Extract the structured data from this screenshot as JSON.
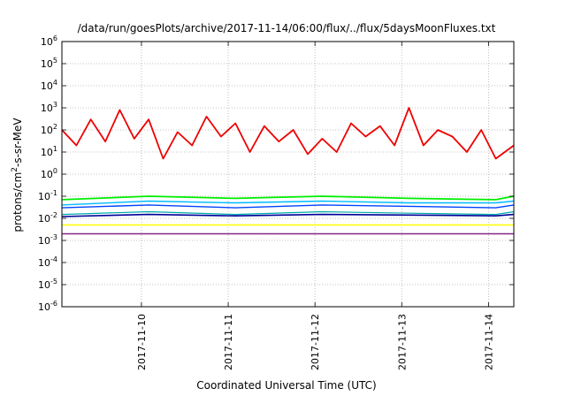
{
  "chart_data": {
    "type": "line",
    "title": "/data/run/goesPlots/archive/2017-11-14/06:00/flux/../flux/5daysMoonFluxes.txt",
    "xlabel": "Coordinated Universal Time (UTC)",
    "ylabel": "protons/cm²-s-sr-MeV",
    "y_scale": "log",
    "ylim": [
      1e-06,
      1000000.0
    ],
    "xlim": [
      "2017-11-09T02:00",
      "2017-11-14T07:00"
    ],
    "grid": true,
    "x_ticks": [
      "2017-11-10",
      "2017-11-11",
      "2017-11-12",
      "2017-11-13",
      "2017-11-14"
    ],
    "y_ticks": [
      {
        "base": "10",
        "exp": "-6"
      },
      {
        "base": "10",
        "exp": "-5"
      },
      {
        "base": "10",
        "exp": "-4"
      },
      {
        "base": "10",
        "exp": "-3"
      },
      {
        "base": "10",
        "exp": "-2"
      },
      {
        "base": "10",
        "exp": "-1"
      },
      {
        "base": "10",
        "exp": "0"
      },
      {
        "base": "10",
        "exp": "1"
      },
      {
        "base": "10",
        "exp": "2"
      },
      {
        "base": "10",
        "exp": "3"
      },
      {
        "base": "10",
        "exp": "4"
      },
      {
        "base": "10",
        "exp": "5"
      },
      {
        "base": "10",
        "exp": "6"
      }
    ],
    "series": [
      {
        "color": "#ee0000",
        "width": 1.8,
        "x": [
          "2017-11-09T02:00",
          "2017-11-09T06:00",
          "2017-11-09T10:00",
          "2017-11-09T14:00",
          "2017-11-09T18:00",
          "2017-11-09T22:00",
          "2017-11-10T02:00",
          "2017-11-10T06:00",
          "2017-11-10T10:00",
          "2017-11-10T14:00",
          "2017-11-10T18:00",
          "2017-11-10T22:00",
          "2017-11-11T02:00",
          "2017-11-11T06:00",
          "2017-11-11T10:00",
          "2017-11-11T14:00",
          "2017-11-11T18:00",
          "2017-11-11T22:00",
          "2017-11-12T02:00",
          "2017-11-12T06:00",
          "2017-11-12T10:00",
          "2017-11-12T14:00",
          "2017-11-12T18:00",
          "2017-11-12T22:00",
          "2017-11-13T02:00",
          "2017-11-13T06:00",
          "2017-11-13T10:00",
          "2017-11-13T14:00",
          "2017-11-13T18:00",
          "2017-11-13T22:00",
          "2017-11-14T02:00",
          "2017-11-14T07:00"
        ],
        "values": [
          100,
          20,
          300,
          30,
          800,
          40,
          300,
          5,
          80,
          20,
          400,
          50,
          200,
          10,
          150,
          30,
          100,
          8,
          40,
          10,
          200,
          50,
          150,
          20,
          1000,
          20,
          100,
          50,
          10,
          100,
          5,
          20
        ]
      },
      {
        "color": "#00ee00",
        "width": 1.8,
        "x": [
          "2017-11-09T02:00",
          "2017-11-10T02:00",
          "2017-11-11T02:00",
          "2017-11-12T02:00",
          "2017-11-13T02:00",
          "2017-11-14T02:00",
          "2017-11-14T07:00"
        ],
        "values": [
          0.07,
          0.1,
          0.08,
          0.1,
          0.08,
          0.07,
          0.1
        ]
      },
      {
        "color": "#00bbff",
        "width": 1.4,
        "x": [
          "2017-11-09T02:00",
          "2017-11-10T02:00",
          "2017-11-11T02:00",
          "2017-11-12T02:00",
          "2017-11-13T02:00",
          "2017-11-14T02:00",
          "2017-11-14T07:00"
        ],
        "values": [
          0.04,
          0.06,
          0.05,
          0.06,
          0.05,
          0.05,
          0.06
        ]
      },
      {
        "color": "#0044ff",
        "width": 1.4,
        "x": [
          "2017-11-09T02:00",
          "2017-11-10T02:00",
          "2017-11-11T02:00",
          "2017-11-12T02:00",
          "2017-11-13T02:00",
          "2017-11-14T02:00",
          "2017-11-14T07:00"
        ],
        "values": [
          0.03,
          0.04,
          0.03,
          0.04,
          0.035,
          0.03,
          0.04
        ]
      },
      {
        "color": "#00aaaa",
        "width": 1.2,
        "x": [
          "2017-11-09T02:00",
          "2017-11-10T02:00",
          "2017-11-11T02:00",
          "2017-11-12T02:00",
          "2017-11-13T02:00",
          "2017-11-14T02:00",
          "2017-11-14T07:00"
        ],
        "values": [
          0.015,
          0.02,
          0.015,
          0.02,
          0.017,
          0.015,
          0.02
        ]
      },
      {
        "color": "#000099",
        "width": 1.6,
        "x": [
          "2017-11-09T02:00",
          "2017-11-10T02:00",
          "2017-11-11T02:00",
          "2017-11-12T02:00",
          "2017-11-13T02:00",
          "2017-11-14T02:00",
          "2017-11-14T07:00"
        ],
        "values": [
          0.012,
          0.015,
          0.013,
          0.015,
          0.014,
          0.013,
          0.015
        ]
      },
      {
        "color": "#ffff00",
        "width": 1.6,
        "x": [
          "2017-11-09T02:00",
          "2017-11-10T02:00",
          "2017-11-11T02:00",
          "2017-11-12T02:00",
          "2017-11-13T02:00",
          "2017-11-14T02:00",
          "2017-11-14T07:00"
        ],
        "values": [
          0.005,
          0.005,
          0.005,
          0.005,
          0.005,
          0.005,
          0.005
        ]
      },
      {
        "color": "#882288",
        "width": 1.6,
        "x": [
          "2017-11-09T02:00",
          "2017-11-10T02:00",
          "2017-11-11T02:00",
          "2017-11-12T02:00",
          "2017-11-13T02:00",
          "2017-11-14T02:00",
          "2017-11-14T07:00"
        ],
        "values": [
          0.002,
          0.002,
          0.002,
          0.002,
          0.002,
          0.002,
          0.002
        ]
      }
    ]
  }
}
